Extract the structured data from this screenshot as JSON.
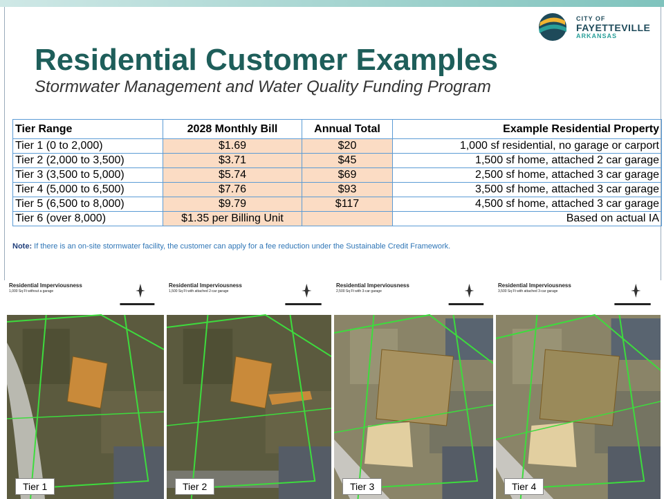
{
  "header": {
    "title": "Residential Customer Examples",
    "subtitle": "Stormwater Management and Water Quality Funding Program"
  },
  "logo": {
    "line1": "CITY OF",
    "line2": "FAYETTEVILLE",
    "line3": "ARKANSAS"
  },
  "table": {
    "columns": [
      "Tier Range",
      "2028 Monthly Bill",
      "Annual Total",
      "Example Residential Property"
    ],
    "rows": [
      {
        "tier": "Tier 1 (0 to 2,000)",
        "bill": "$1.69",
        "annual": "$20",
        "example": "1,000 sf residential, no garage or carport"
      },
      {
        "tier": "Tier 2 (2,000 to 3,500)",
        "bill": "$3.71",
        "annual": "$45",
        "example": "1,500 sf home, attached 2 car garage"
      },
      {
        "tier": "Tier 3 (3,500 to 5,000)",
        "bill": "$5.74",
        "annual": "$69",
        "example": "2,500 sf home, attached 3 car garage"
      },
      {
        "tier": "Tier 4 (5,000 to 6,500)",
        "bill": "$7.76",
        "annual": "$93",
        "example": "3,500 sf home, attached 3 car garage"
      },
      {
        "tier": "Tier 5 (6,500 to 8,000)",
        "bill": "$9.79",
        "annual": "$117",
        "example": "4,500 sf home, attached 3 car garage"
      },
      {
        "tier": "Tier 6 (over 8,000)",
        "bill": "$1.35 per Billing Unit",
        "example": "Based on actual IA"
      }
    ]
  },
  "note": {
    "label": "Note:",
    "text": "If there is an on-site stormwater facility, the customer can apply for a fee reduction under the Sustainable Credit Framework."
  },
  "panels": [
    {
      "title": "Residential Imperviousness",
      "subtitle": "1,000 Sq Ft without a garage",
      "tier": "Tier 1"
    },
    {
      "title": "Residential Imperviousness",
      "subtitle": "1,500 Sq Ft with attached 2-car garage",
      "tier": "Tier 2"
    },
    {
      "title": "Residential Imperviousness",
      "subtitle": "2,500 Sq Ft with 3-car garage",
      "tier": "Tier 3"
    },
    {
      "title": "Residential Imperviousness",
      "subtitle": "3,500 Sq Ft with attached 3-car garage",
      "tier": "Tier 4"
    }
  ]
}
